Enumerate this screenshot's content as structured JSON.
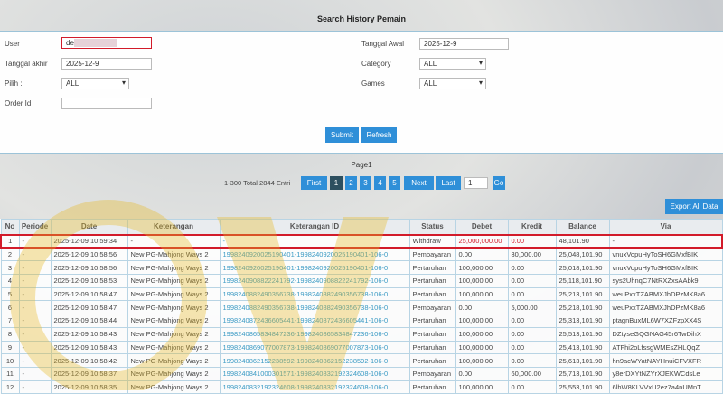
{
  "title": "Search History Pemain",
  "form": {
    "user_label": "User",
    "user_value": "de",
    "tanggal_akhir_label": "Tanggal akhir",
    "tanggal_akhir_value": "2025-12-9",
    "pilih_label": "Pilih  :",
    "pilih_value": "ALL",
    "order_id_label": "Order Id",
    "order_id_value": "",
    "tanggal_awal_label": "Tanggal Awal",
    "tanggal_awal_value": "2025-12-9",
    "category_label": "Category",
    "category_value": "ALL",
    "games_label": "Games",
    "games_value": "ALL",
    "submit": "Submit",
    "refresh": "Refresh"
  },
  "pagination": {
    "page_label": "Page1",
    "range": "1-300 Total 2844 Entri",
    "first": "First",
    "pages": [
      "1",
      "2",
      "3",
      "4",
      "5"
    ],
    "next": "Next",
    "last": "Last",
    "goto_value": "1",
    "go": "Go"
  },
  "export": "Export All Data",
  "colors": {
    "accent": "#2f8fd8",
    "highlight": "#d21b2a",
    "link": "#3a9ac4"
  },
  "table": {
    "headers": [
      "No",
      "Periode",
      "Date",
      "Keterangan",
      "Keterangan ID",
      "Status",
      "Debet",
      "Kredit",
      "Balance",
      "Via"
    ],
    "rows": [
      [
        "1",
        "-",
        "2025-12-09 10:59:34",
        "-",
        "-",
        "Withdraw",
        "25,000,000.00",
        "0.00",
        "48,101.90",
        "-"
      ],
      [
        "2",
        "-",
        "2025-12-09 10:58:56",
        "New PG-Mahjong Ways 2",
        "1998240920025190401-1998240920025190401-106-0",
        "Pembayaran",
        "0.00",
        "30,000.00",
        "25,048,101.90",
        "vnuxVopuHyToSH6GMxfBIK"
      ],
      [
        "3",
        "-",
        "2025-12-09 10:58:56",
        "New PG-Mahjong Ways 2",
        "1998240920025190401-1998240920025190401-106-0",
        "Pertaruhan",
        "100,000.00",
        "0.00",
        "25,018,101.90",
        "vnuxVopuHyToSH6GMxfBIK"
      ],
      [
        "4",
        "-",
        "2025-12-09 10:58:53",
        "New PG-Mahjong Ways 2",
        "1998240908822241792-1998240908822241792-106-0",
        "Pertaruhan",
        "100,000.00",
        "0.00",
        "25,118,101.90",
        "sys2UhnqC7NtRXZxsAAbk9"
      ],
      [
        "5",
        "-",
        "2025-12-09 10:58:47",
        "New PG-Mahjong Ways 2",
        "1998240882490356738-1998240882490356738-106-0",
        "Pertaruhan",
        "100,000.00",
        "0.00",
        "25,213,101.90",
        "weuPxxTZABMXJhDPzMK8a6"
      ],
      [
        "6",
        "-",
        "2025-12-09 10:58:47",
        "New PG-Mahjong Ways 2",
        "1998240882490356738-1998240882490356738-106-0",
        "Pembayaran",
        "0.00",
        "5,000.00",
        "25,218,101.90",
        "weuPxxTZABMXJhDPzMK8a6"
      ],
      [
        "7",
        "-",
        "2025-12-09 10:58:44",
        "New PG-Mahjong Ways 2",
        "1998240872436605441-1998240872436605441-106-0",
        "Pertaruhan",
        "100,000.00",
        "0.00",
        "25,313,101.90",
        "ptagnBuxML6W7XZFzpXX4S"
      ],
      [
        "8",
        "-",
        "2025-12-09 10:58:43",
        "New PG-Mahjong Ways 2",
        "1998240865834847236-1998240865834847236-106-0",
        "Pertaruhan",
        "100,000.00",
        "0.00",
        "25,513,101.90",
        "DZtyseGQGNAG45r6TwDihX"
      ],
      [
        "9",
        "-",
        "2025-12-09 10:58:43",
        "New PG-Mahjong Ways 2",
        "1998240869077007873-1998240869077007873-106-0",
        "Pertaruhan",
        "100,000.00",
        "0.00",
        "25,413,101.90",
        "ATFhi2oLfssgWMEsZHLQqZ"
      ],
      [
        "10",
        "-",
        "2025-12-09 10:58:42",
        "New PG-Mahjong Ways 2",
        "1998240862152238592-1998240862152238592-106-0",
        "Pertaruhan",
        "100,000.00",
        "0.00",
        "25,613,101.90",
        "hn9acWYatNAYHnuiCFVXFR"
      ],
      [
        "11",
        "-",
        "2025-12-09 10:58:37",
        "New PG-Mahjong Ways 2",
        "1998240841000301571-1998240832192324608-106-0",
        "Pembayaran",
        "0.00",
        "60,000.00",
        "25,713,101.90",
        "y8erDXYtNZYrXJEKWCdsLe"
      ],
      [
        "12",
        "-",
        "2025-12-09 10:58:35",
        "New PG-Mahjong Ways 2",
        "1998240832192324608-1998240832192324608-106-0",
        "Pertaruhan",
        "100,000.00",
        "0.00",
        "25,553,101.90",
        "6lhW8KLVVxU2ez7a4nUMnT"
      ]
    ]
  }
}
